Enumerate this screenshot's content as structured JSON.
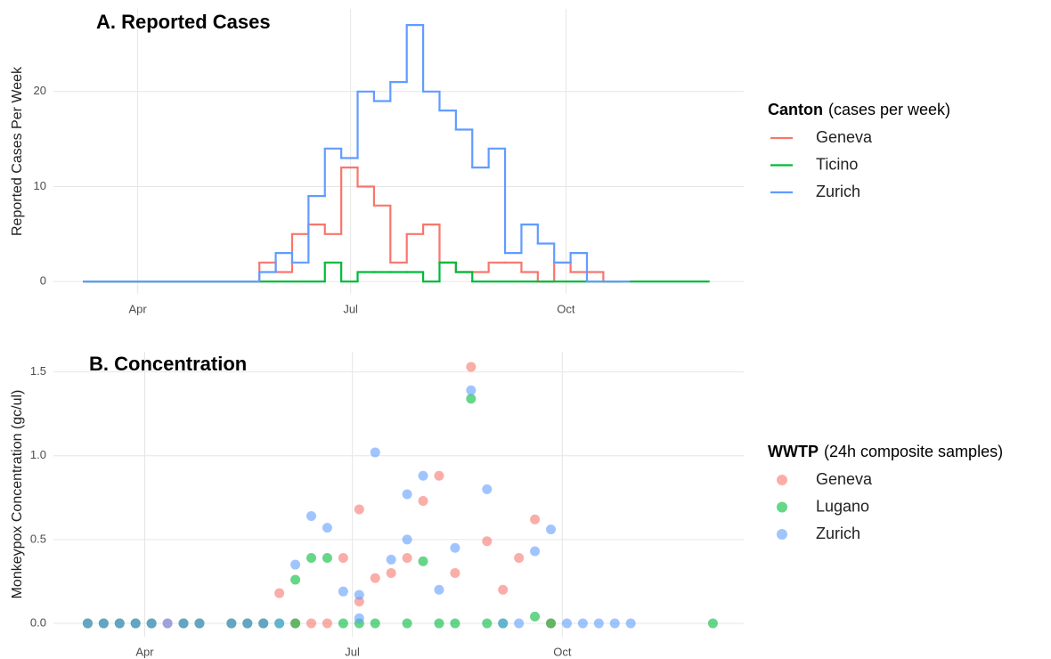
{
  "chart_data": [
    {
      "type": "step",
      "title": "A. Reported Cases",
      "y_label": "Reported Cases Per Week",
      "legend_title": "Canton",
      "legend_subtitle": "(cases per week)",
      "xlim": [
        55,
        350
      ],
      "ylim": [
        -1.3,
        28.7
      ],
      "xticks": [
        {
          "value": 91,
          "label": "Apr"
        },
        {
          "value": 182,
          "label": "Jul"
        },
        {
          "value": 274,
          "label": "Oct"
        }
      ],
      "yticks": [
        0,
        10,
        20
      ],
      "grid": true,
      "series": [
        {
          "name": "Geneva",
          "color": "#F8766D",
          "x": [
            68,
            143,
            150,
            157,
            164,
            171,
            178,
            185,
            192,
            199,
            206,
            213,
            220,
            227,
            234,
            241,
            248,
            255,
            262,
            269,
            276,
            283,
            290,
            297
          ],
          "values": [
            0,
            2,
            1,
            5,
            6,
            5,
            12,
            10,
            8,
            2,
            5,
            6,
            2,
            1,
            1,
            2,
            2,
            1,
            0,
            2,
            1,
            1,
            0,
            0
          ]
        },
        {
          "name": "Ticino",
          "color": "#00BA38",
          "x": [
            68,
            171,
            178,
            185,
            192,
            199,
            206,
            213,
            220,
            227,
            234,
            335
          ],
          "values": [
            0,
            2,
            0,
            1,
            1,
            1,
            1,
            0,
            2,
            1,
            0,
            0
          ]
        },
        {
          "name": "Zurich",
          "color": "#619CFF",
          "x": [
            68,
            143,
            150,
            157,
            164,
            171,
            178,
            185,
            192,
            199,
            206,
            213,
            220,
            227,
            234,
            241,
            248,
            255,
            262,
            269,
            276,
            283,
            301
          ],
          "values": [
            0,
            1,
            3,
            2,
            9,
            14,
            13,
            20,
            19,
            21,
            27,
            20,
            18,
            16,
            12,
            14,
            3,
            6,
            4,
            2,
            3,
            0,
            0
          ]
        }
      ]
    },
    {
      "type": "scatter",
      "title": "B. Concentration",
      "y_label": "Monkeypox Concentration (gc/ul)",
      "legend_title": "WWTP",
      "legend_subtitle": "(24h composite samples)",
      "xlim": [
        51,
        353.5
      ],
      "ylim": [
        -0.08,
        1.62
      ],
      "xticks": [
        {
          "value": 91,
          "label": "Apr"
        },
        {
          "value": 182,
          "label": "Jul"
        },
        {
          "value": 274,
          "label": "Oct"
        }
      ],
      "yticks": [
        {
          "value": 0,
          "label": "0.0"
        },
        0.5,
        {
          "value": 1,
          "label": "1.0"
        },
        1.5
      ],
      "grid": true,
      "series": [
        {
          "name": "Geneva",
          "color": "#F8766D",
          "x": [
            66,
            73,
            80,
            87,
            94,
            101,
            108,
            115,
            129,
            136,
            143,
            150,
            157,
            164,
            171,
            178,
            185,
            185,
            192,
            199,
            206,
            213,
            220,
            227,
            234,
            241,
            248,
            255,
            262,
            269
          ],
          "values": [
            0,
            0,
            0,
            0,
            0,
            0,
            0,
            0,
            0,
            0,
            0,
            0.18,
            0,
            0,
            0,
            0.39,
            0.13,
            0.68,
            0.27,
            0.3,
            0.39,
            0.73,
            0.88,
            0.3,
            1.53,
            0.49,
            0.2,
            0.39,
            0.62,
            0
          ]
        },
        {
          "name": "Lugano",
          "color": "#00BA38",
          "x": [
            66,
            73,
            80,
            87,
            94,
            108,
            115,
            129,
            136,
            143,
            150,
            157,
            157,
            164,
            171,
            178,
            185,
            192,
            206,
            213,
            220,
            227,
            234,
            241,
            248,
            262,
            269,
            340
          ],
          "values": [
            0,
            0,
            0,
            0,
            0,
            0,
            0,
            0,
            0,
            0,
            0,
            0,
            0.26,
            0.39,
            0.39,
            0,
            0,
            0,
            0,
            0.37,
            0,
            0,
            1.34,
            0,
            0,
            0.04,
            0,
            0
          ]
        },
        {
          "name": "Zurich",
          "color": "#619CFF",
          "x": [
            66,
            73,
            80,
            87,
            94,
            101,
            108,
            115,
            129,
            136,
            143,
            150,
            157,
            164,
            171,
            178,
            185,
            185,
            192,
            199,
            206,
            206,
            213,
            220,
            227,
            234,
            241,
            248,
            255,
            262,
            269,
            276,
            283,
            290,
            297,
            304
          ],
          "values": [
            0,
            0,
            0,
            0,
            0,
            0,
            0,
            0,
            0,
            0,
            0,
            0,
            0.35,
            0.64,
            0.57,
            0.19,
            0.17,
            0.03,
            1.02,
            0.38,
            0.77,
            0.5,
            0.88,
            0.2,
            0.45,
            1.39,
            0.8,
            0,
            0,
            0.43,
            0.56,
            0,
            0,
            0,
            0,
            0
          ]
        }
      ]
    }
  ]
}
